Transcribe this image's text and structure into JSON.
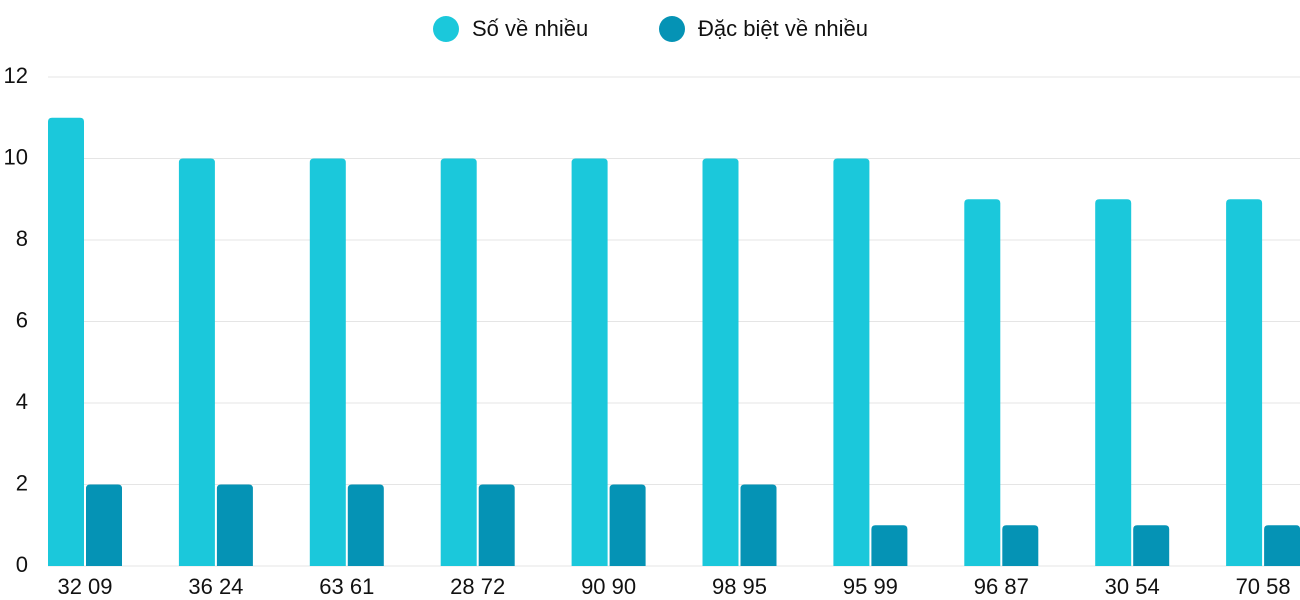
{
  "chart_data": {
    "type": "bar",
    "categories": [
      "32 09",
      "36 24",
      "63 61",
      "28 72",
      "90 90",
      "98 95",
      "95 99",
      "96 87",
      "30 54",
      "70 58"
    ],
    "series": [
      {
        "name": "Số về nhiều",
        "color": "#1bc8db",
        "values": [
          11,
          10,
          10,
          10,
          10,
          10,
          10,
          9,
          9,
          9
        ]
      },
      {
        "name": "Đặc biệt về nhiều",
        "color": "#0593b5",
        "values": [
          2,
          2,
          2,
          2,
          2,
          2,
          1,
          1,
          1,
          1
        ]
      }
    ],
    "ylim": [
      0,
      12
    ],
    "yticks": [
      0,
      2,
      4,
      6,
      8,
      10,
      12
    ],
    "grid": true,
    "legend": "top"
  }
}
